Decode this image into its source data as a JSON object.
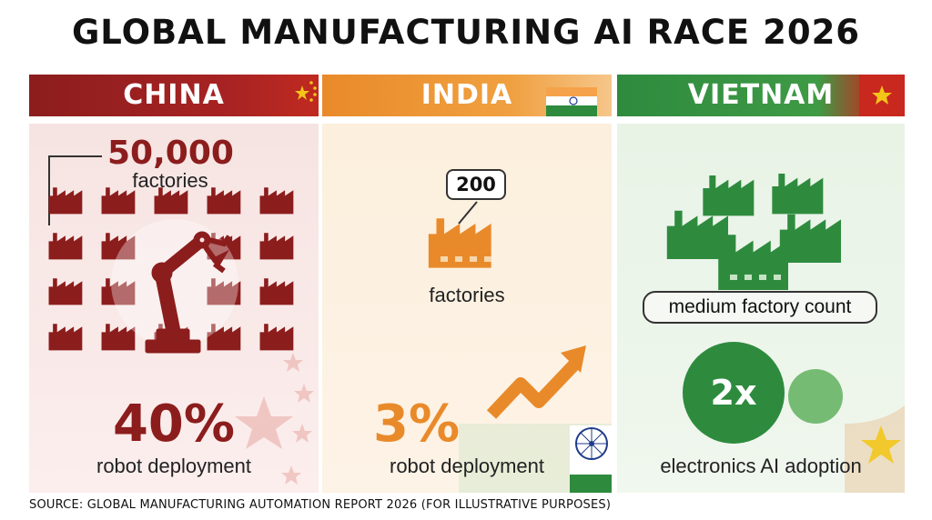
{
  "title": "GLOBAL MANUFACTURING AI RACE 2026",
  "source": "SOURCE: GLOBAL MANUFACTURING AUTOMATION REPORT 2026 (FOR ILLUSTRATIVE PURPOSES)",
  "colors": {
    "china": "#8c1d1d",
    "india": "#e98a2a",
    "vietnam": "#2e8b3e"
  },
  "countries": {
    "china": {
      "name": "CHINA",
      "factories_value": "50,000",
      "factories_label": "factories",
      "robot_value": "40%",
      "robot_label": "robot deployment",
      "icons": [
        "factory-icon",
        "robot-arm-icon",
        "star-icon"
      ]
    },
    "india": {
      "name": "INDIA",
      "factories_value": "200",
      "factories_label": "factories",
      "robot_value": "3%",
      "robot_label": "robot deployment",
      "icons": [
        "factory-icon",
        "trend-up-arrow-icon",
        "ashoka-chakra-icon"
      ]
    },
    "vietnam": {
      "name": "VIETNAM",
      "factory_count_label": "medium factory count",
      "adoption_value": "2x",
      "adoption_label": "electronics AI adoption",
      "icons": [
        "factory-icon",
        "venn-circles-icon",
        "star-icon"
      ]
    }
  },
  "chart_data": {
    "type": "table",
    "title": "GLOBAL MANUFACTURING AI RACE 2026",
    "columns": [
      "CHINA",
      "INDIA",
      "VIETNAM"
    ],
    "rows": [
      {
        "metric": "factories",
        "values": [
          "50,000",
          "200",
          "medium factory count"
        ]
      },
      {
        "metric": "robot deployment",
        "values": [
          "40%",
          "3%",
          ""
        ]
      },
      {
        "metric": "electronics AI adoption",
        "values": [
          "",
          "",
          "2x"
        ]
      }
    ]
  }
}
